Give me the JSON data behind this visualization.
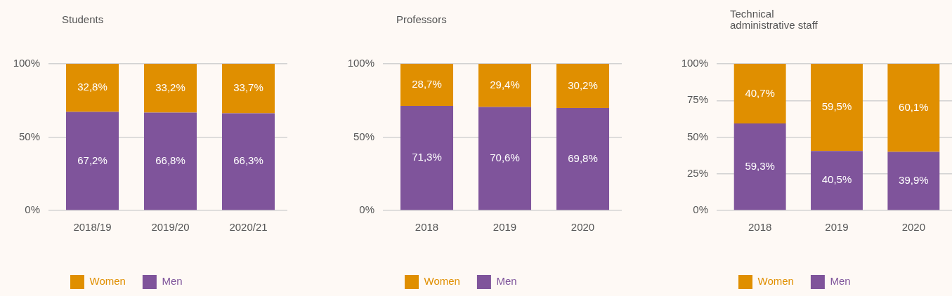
{
  "chart_data": [
    {
      "type": "bar",
      "title": "Students",
      "categories": [
        "2018/19",
        "2019/20",
        "2020/21"
      ],
      "series": [
        {
          "name": "Men",
          "color": "#7f549b",
          "values": [
            67.2,
            66.8,
            66.3
          ],
          "value_labels": [
            "67,2%",
            "66,8%",
            "66,3%"
          ]
        },
        {
          "name": "Women",
          "color": "#e08f00",
          "values": [
            32.8,
            33.2,
            33.7
          ],
          "value_labels": [
            "32,8%",
            "33,2%",
            "33,7%"
          ]
        }
      ],
      "stacked": true,
      "ylim": [
        0,
        100
      ],
      "yticks": [
        {
          "value": 0,
          "label": "0%"
        },
        {
          "value": 50,
          "label": "50%"
        },
        {
          "value": 100,
          "label": "100%"
        }
      ],
      "grid": "y",
      "legend": "bottom left"
    },
    {
      "type": "bar",
      "title": "Professors",
      "categories": [
        "2018",
        "2019",
        "2020"
      ],
      "series": [
        {
          "name": "Men",
          "color": "#7f549b",
          "values": [
            71.3,
            70.6,
            69.8
          ],
          "value_labels": [
            "71,3%",
            "70,6%",
            "69,8%"
          ]
        },
        {
          "name": "Women",
          "color": "#e08f00",
          "values": [
            28.7,
            29.4,
            30.2
          ],
          "value_labels": [
            "28,7%",
            "29,4%",
            "30,2%"
          ]
        }
      ],
      "stacked": true,
      "ylim": [
        0,
        100
      ],
      "yticks": [
        {
          "value": 0,
          "label": "0%"
        },
        {
          "value": 50,
          "label": "50%"
        },
        {
          "value": 100,
          "label": "100%"
        }
      ],
      "grid": "y",
      "legend": "bottom left"
    },
    {
      "type": "bar",
      "title": "Technical administrative staff",
      "categories": [
        "2018",
        "2019",
        "2020"
      ],
      "series": [
        {
          "name": "Men",
          "color": "#7f549b",
          "values": [
            59.3,
            40.5,
            39.9
          ],
          "value_labels": [
            "59,3%",
            "40,5%",
            "39,9%"
          ]
        },
        {
          "name": "Women",
          "color": "#e08f00",
          "values": [
            40.7,
            59.5,
            60.1
          ],
          "value_labels": [
            "40,7%",
            "59,5%",
            "60,1%"
          ]
        }
      ],
      "stacked": true,
      "ylim": [
        0,
        100
      ],
      "yticks": [
        {
          "value": 0,
          "label": "0%"
        },
        {
          "value": 25,
          "label": "25%"
        },
        {
          "value": 50,
          "label": "50%"
        },
        {
          "value": 75,
          "label": "75%"
        },
        {
          "value": 100,
          "label": "100%"
        }
      ],
      "grid": "y",
      "legend": "bottom left"
    }
  ]
}
